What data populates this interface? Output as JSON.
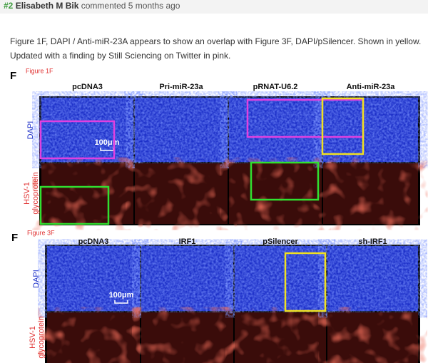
{
  "header": {
    "number": "#2",
    "author": "Elisabeth M Bik",
    "action": "commented 5 months ago"
  },
  "body": {
    "lines": [
      "Figure 1F, DAPI / Anti-miR-23A appears to show an overlap with Figure 3F, DAPI/pSilencer. Shown in yellow.",
      "Updated with a finding by Still Sciencing on Twitter in pink."
    ]
  },
  "figures": [
    {
      "panel": "F",
      "caption": "Figure 1F",
      "columns": [
        "pcDNA3",
        "Pri-miR-23a",
        "pRNAT-U6.2",
        "Anti-miR-23a"
      ],
      "rows": [
        "DAPI",
        "HSV-1 glycoprotein"
      ],
      "scale": "100μm"
    },
    {
      "panel": "F",
      "caption": "Figure 3F",
      "columns": [
        "pcDNA3",
        "IRF1",
        "pSilencer",
        "sh-IRF1"
      ],
      "rows": [
        "DAPI",
        "HSV-1 glycoprotein"
      ],
      "scale": "100μm"
    }
  ]
}
